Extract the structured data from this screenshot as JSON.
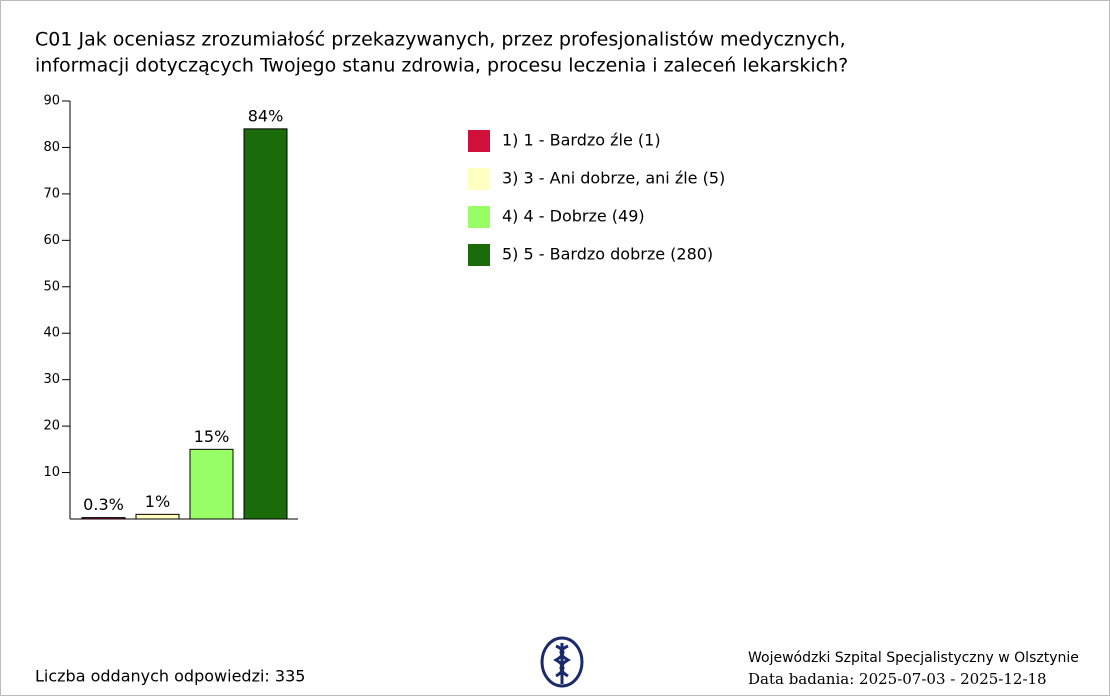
{
  "chart_data": {
    "type": "bar",
    "title": [
      "C01 Jak oceniasz zrozumiałość przekazywanych, przez profesjonalistów medycznych,",
      "informacji dotyczących Twojego stanu zdrowia, procesu leczenia i zaleceń lekarskich?"
    ],
    "categories": [
      "1) 1 - Bardzo źle (1)",
      "3) 3 - Ani dobrze, ani źle (5)",
      "4) 4 - Dobrze (49)",
      "5) 5 - Bardzo dobrze (280)"
    ],
    "values": [
      0.3,
      1,
      15,
      84
    ],
    "value_labels": [
      "0.3%",
      "1%",
      "15%",
      "84%"
    ],
    "colors": [
      "#d0103a",
      "#ffffc0",
      "#99ff66",
      "#1a6b0a"
    ],
    "ylim": [
      0,
      90
    ],
    "yticks": [
      10,
      20,
      30,
      40,
      50,
      60,
      70,
      80,
      90
    ],
    "legend": "right"
  },
  "footer": {
    "responses": "Liczba oddanych odpowiedzi: 335",
    "organization": "Wojewódzki Szpital Specjalistyczny w Olsztynie",
    "date": "Data badania: 2025-07-03 - 2025-12-18"
  }
}
